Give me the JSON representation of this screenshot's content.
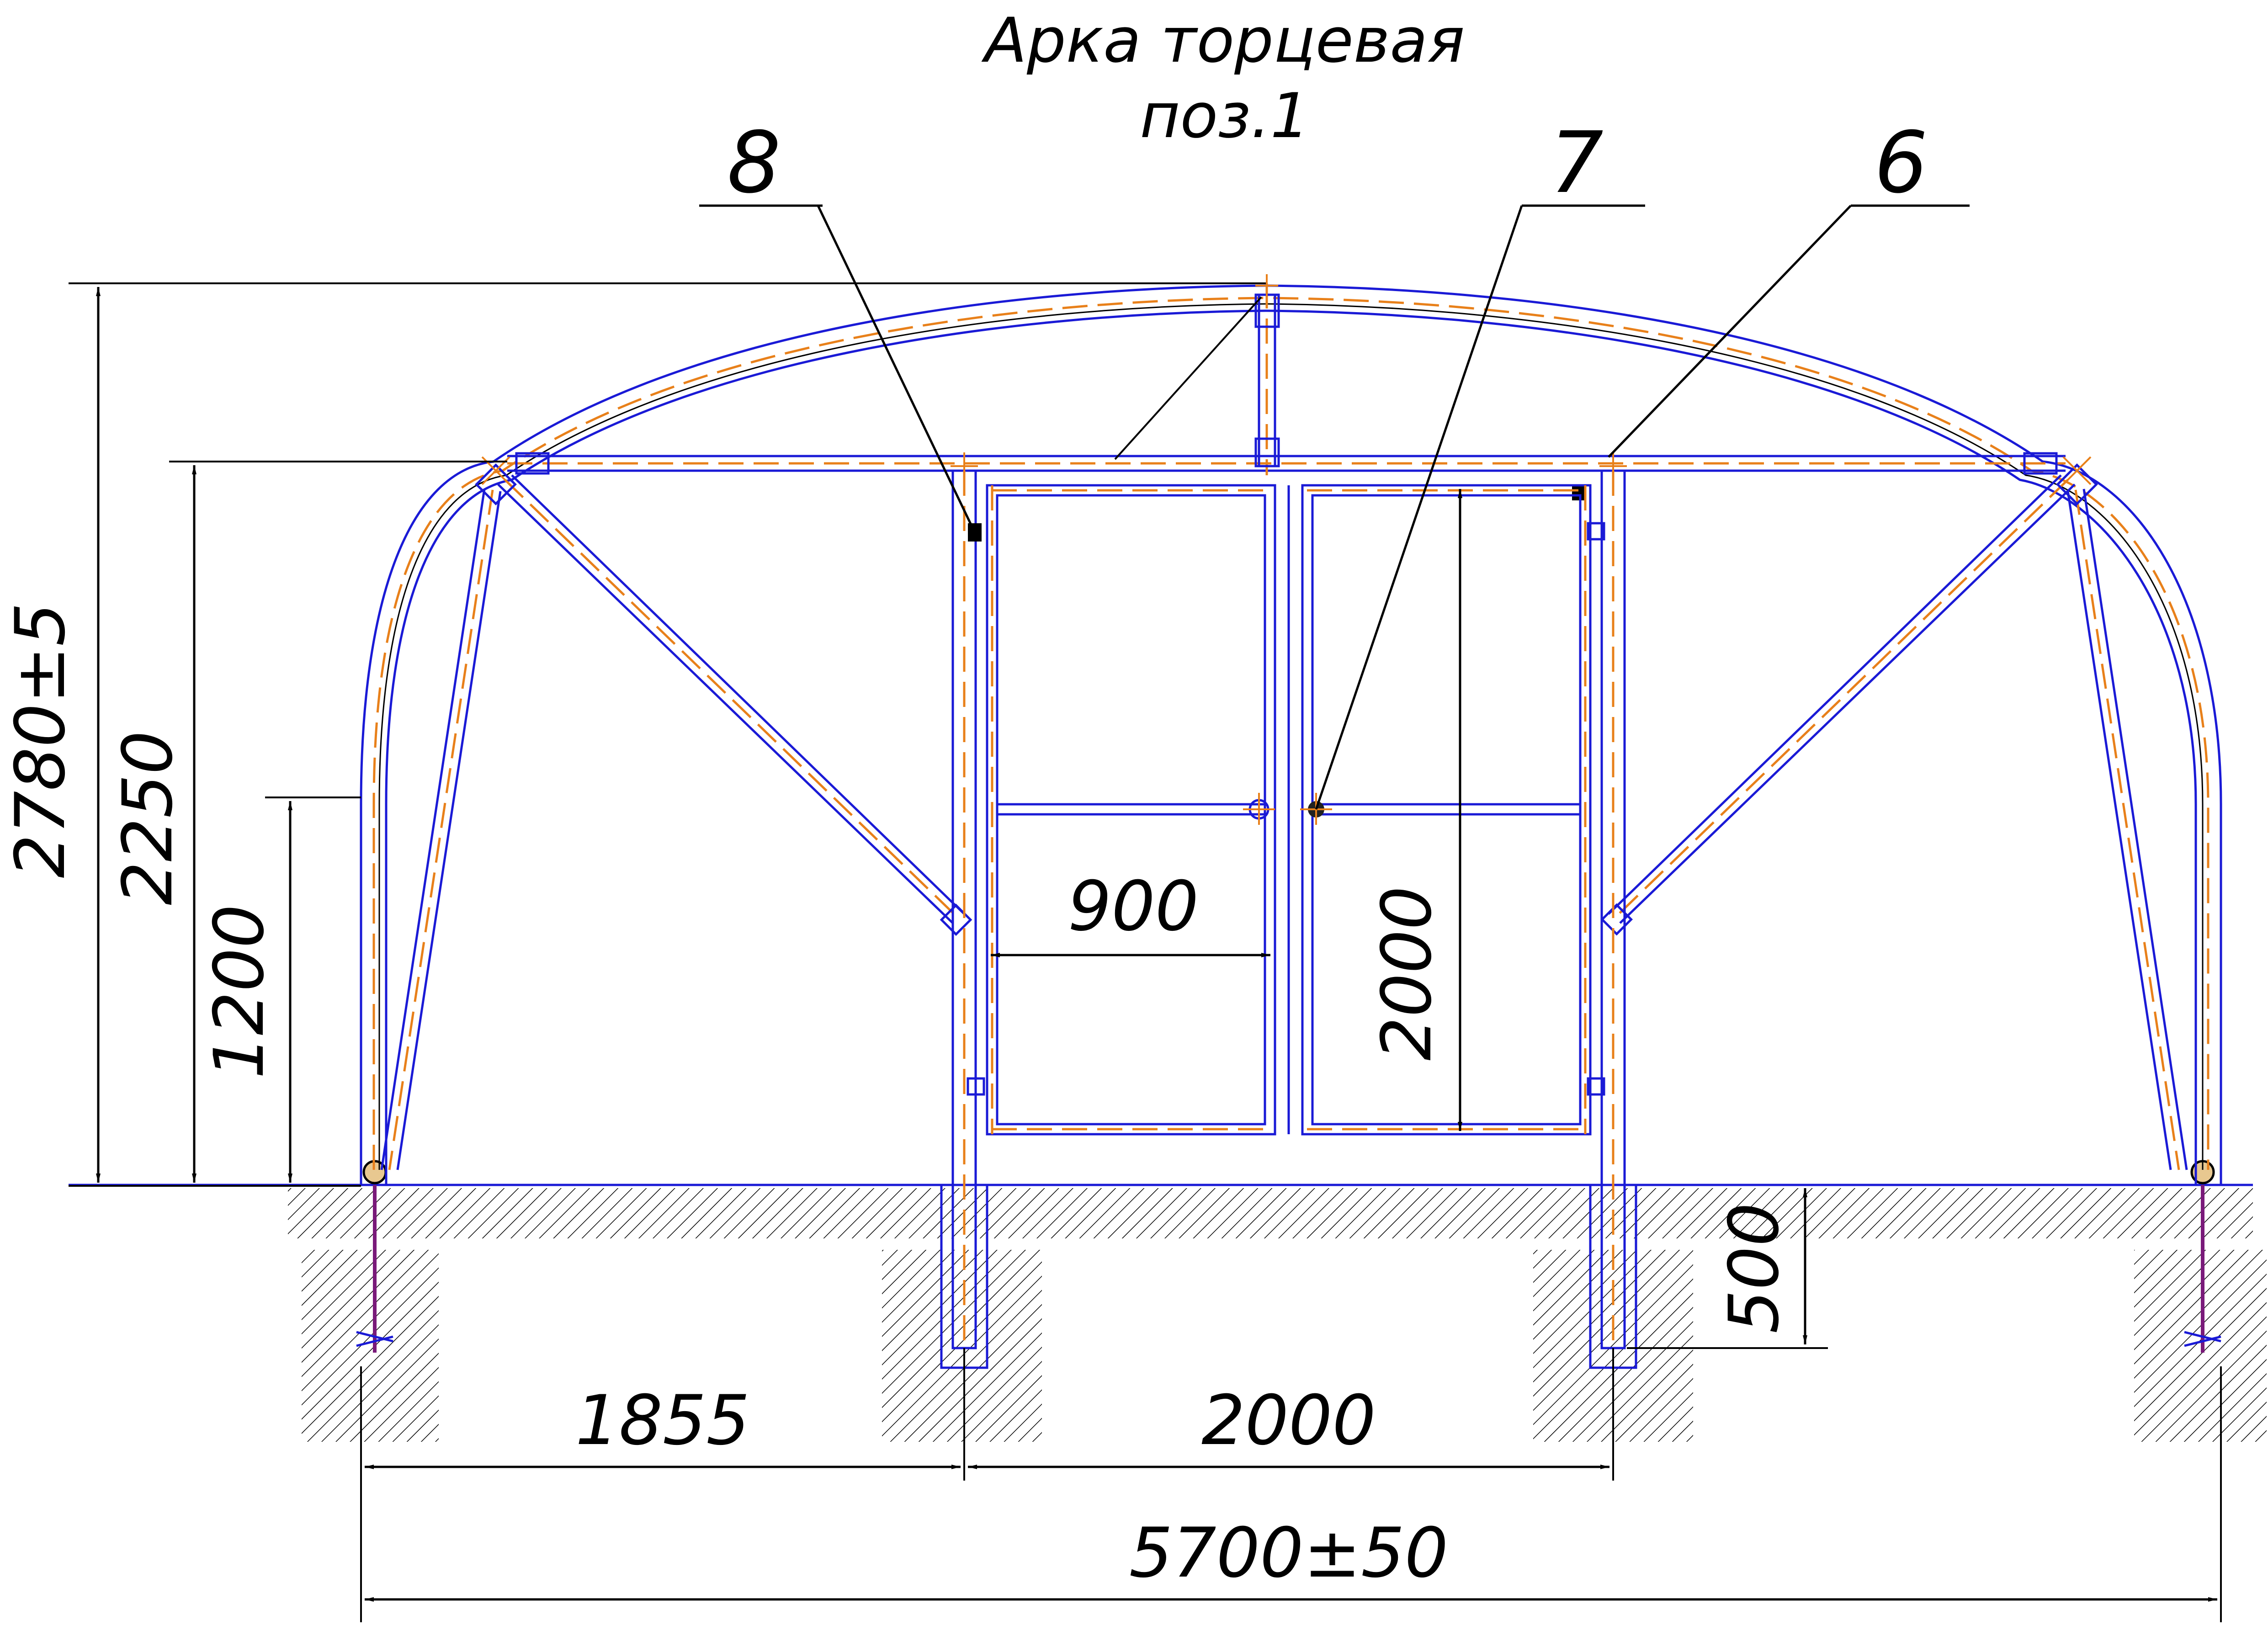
{
  "title": {
    "line1": "Арка торцевая",
    "line2": "поз.1"
  },
  "leaders": [
    {
      "id": "8",
      "label": "8"
    },
    {
      "id": "7",
      "label": "7"
    },
    {
      "id": "6",
      "label": "6"
    }
  ],
  "dimensions": {
    "total_height": "2780±5",
    "crossbar_height": "2250",
    "wall_height": "1200",
    "door_width": "900",
    "door_height": "2000",
    "post_depth": "500",
    "side_span": "1855",
    "door_span": "2000",
    "total_width": "5700±50"
  },
  "colors": {
    "frame": "#1a1ad6",
    "centerline": "#e8801a",
    "dimension": "#000000"
  }
}
